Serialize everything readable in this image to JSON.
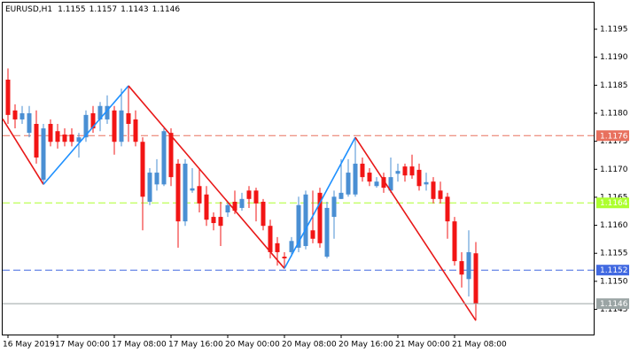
{
  "chart_data": {
    "type": "candlestick",
    "symbol": "EURUSD,H1",
    "categories": [
      "16 May 2019",
      null,
      null,
      null,
      null,
      null,
      null,
      "17 May 00:00",
      null,
      null,
      null,
      null,
      null,
      null,
      null,
      "17 May 08:00",
      null,
      null,
      null,
      null,
      null,
      null,
      null,
      "17 May 16:00",
      null,
      null,
      null,
      null,
      null,
      null,
      null,
      "20 May 00:00",
      null,
      null,
      null,
      null,
      null,
      null,
      null,
      "20 May 08:00",
      null,
      null,
      null,
      null,
      null,
      null,
      null,
      "20 May 16:00",
      null,
      null,
      null,
      null,
      null,
      null,
      null,
      "21 May 00:00",
      null,
      null,
      null,
      null,
      null,
      null,
      null,
      "21 May 08:00",
      null,
      null,
      null
    ],
    "open": [
      1.1186,
      1.11805,
      1.11789,
      1.11765,
      1.11781,
      1.11681,
      1.11781,
      1.11768,
      1.11762,
      1.11762,
      1.11749,
      1.11757,
      1.118,
      1.11789,
      1.11789,
      1.11805,
      1.11749,
      1.118,
      1.11789,
      1.11749,
      1.11642,
      1.11673,
      1.11673,
      1.11765,
      1.1171,
      1.11607,
      1.11662,
      1.1167,
      1.11655,
      1.11615,
      1.11615,
      1.11623,
      1.11642,
      1.11631,
      1.11662,
      1.11662,
      1.11642,
      1.11599,
      1.11568,
      1.11544,
      1.11552,
      1.1156,
      1.11563,
      1.11591,
      1.11658,
      1.11544,
      1.11615,
      1.11647,
      1.11655,
      1.11655,
      1.1171,
      1.11694,
      1.1167,
      1.11686,
      1.11662,
      1.11692,
      1.11705,
      1.11705,
      1.11699,
      1.11673,
      1.11678,
      1.11662,
      1.11651,
      1.11607,
      1.11536,
      1.11504,
      1.1155
    ],
    "high": [
      1.1188,
      1.11816,
      1.11813,
      1.11813,
      1.11805,
      1.11781,
      1.11789,
      1.11781,
      1.11773,
      1.11773,
      1.11765,
      1.11805,
      1.11813,
      1.1182,
      1.11832,
      1.11813,
      1.11844,
      1.11849,
      1.11805,
      1.11757,
      1.11702,
      1.11718,
      1.11773,
      1.11773,
      1.11718,
      1.11718,
      1.11702,
      1.11702,
      1.1167,
      1.11623,
      1.11642,
      1.11642,
      1.11662,
      1.11658,
      1.1167,
      1.11667,
      1.11647,
      1.1161,
      1.11579,
      1.11552,
      1.11579,
      1.11651,
      1.11662,
      1.11662,
      1.11667,
      1.11642,
      1.11662,
      1.11718,
      1.11718,
      1.11757,
      1.11721,
      1.11702,
      1.11686,
      1.11694,
      1.11721,
      1.1171,
      1.1171,
      1.11726,
      1.1171,
      1.11694,
      1.11686,
      1.11678,
      1.11658,
      1.11615,
      1.11552,
      1.11591,
      1.1157
    ],
    "low": [
      1.11781,
      1.11773,
      1.11781,
      1.11757,
      1.1171,
      1.11673,
      1.11741,
      1.11737,
      1.11741,
      1.11741,
      1.11721,
      1.11749,
      1.11765,
      1.11768,
      1.11781,
      1.11726,
      1.11741,
      1.11749,
      1.11741,
      1.11591,
      1.11636,
      1.11662,
      1.1167,
      1.1167,
      1.1156,
      1.11599,
      1.11658,
      1.11623,
      1.11599,
      1.11591,
      1.11563,
      1.11615,
      1.1162,
      1.11626,
      1.11631,
      1.11607,
      1.11591,
      1.11541,
      1.11528,
      1.11523,
      1.11544,
      1.11552,
      1.11557,
      1.11568,
      1.1156,
      1.11541,
      1.11576,
      1.11647,
      1.11651,
      1.11651,
      1.11678,
      1.1167,
      1.11667,
      1.11658,
      1.11658,
      1.11678,
      1.11678,
      1.11683,
      1.11662,
      1.11662,
      1.11639,
      1.11639,
      1.11576,
      1.11528,
      1.11489,
      1.11473,
      1.1143
    ],
    "close": [
      1.11797,
      1.11789,
      1.118,
      1.118,
      1.11721,
      1.11773,
      1.11749,
      1.11749,
      1.11749,
      1.11749,
      1.11757,
      1.11797,
      1.11773,
      1.11813,
      1.11813,
      1.11749,
      1.11805,
      1.11781,
      1.11749,
      1.11651,
      1.11694,
      1.11694,
      1.11768,
      1.11686,
      1.11607,
      1.1171,
      1.11666,
      1.11639,
      1.1161,
      1.11604,
      1.11599,
      1.11636,
      1.11626,
      1.11647,
      1.11647,
      1.11639,
      1.11599,
      1.11552,
      1.11552,
      1.11541,
      1.11572,
      1.11636,
      1.11655,
      1.11576,
      1.11568,
      1.11631,
      1.11651,
      1.11658,
      1.11694,
      1.1171,
      1.11686,
      1.11678,
      1.11678,
      1.11667,
      1.11686,
      1.11697,
      1.11689,
      1.11689,
      1.1167,
      1.11677,
      1.11647,
      1.11647,
      1.11607,
      1.11536,
      1.11512,
      1.11552,
      1.1146
    ],
    "up_color": "#4a8fd3",
    "down_color": "#f21515",
    "bid_color": "#9aa4a4",
    "ylim": [
      1.11405,
      1.11999
    ],
    "yticks": [
      1.1195,
      {
        "value": 1.119,
        "label": "1.1190"
      },
      1.1185,
      {
        "value": 1.118,
        "label": "1.1180"
      },
      1.1175,
      {
        "value": 1.117,
        "label": "1.1170"
      },
      1.1165,
      {
        "value": 1.116,
        "label": "1.1160"
      },
      1.1155,
      {
        "value": 1.115,
        "label": "1.1150"
      },
      1.1145
    ],
    "levels": [
      {
        "value": 1.1176,
        "color": "#e8705e"
      },
      {
        "value": 1.1164,
        "color": "#adff2f"
      },
      {
        "value": 1.1152,
        "color": "#4169e1"
      }
    ],
    "zigzag": {
      "x": [
        0,
        5,
        17,
        39,
        49,
        66
      ],
      "values": [
        1.1179,
        1.11673,
        1.11849,
        1.11523,
        1.11757,
        1.1143
      ],
      "up_color": "#1e90ff",
      "down_color": "#e81818"
    }
  }
}
